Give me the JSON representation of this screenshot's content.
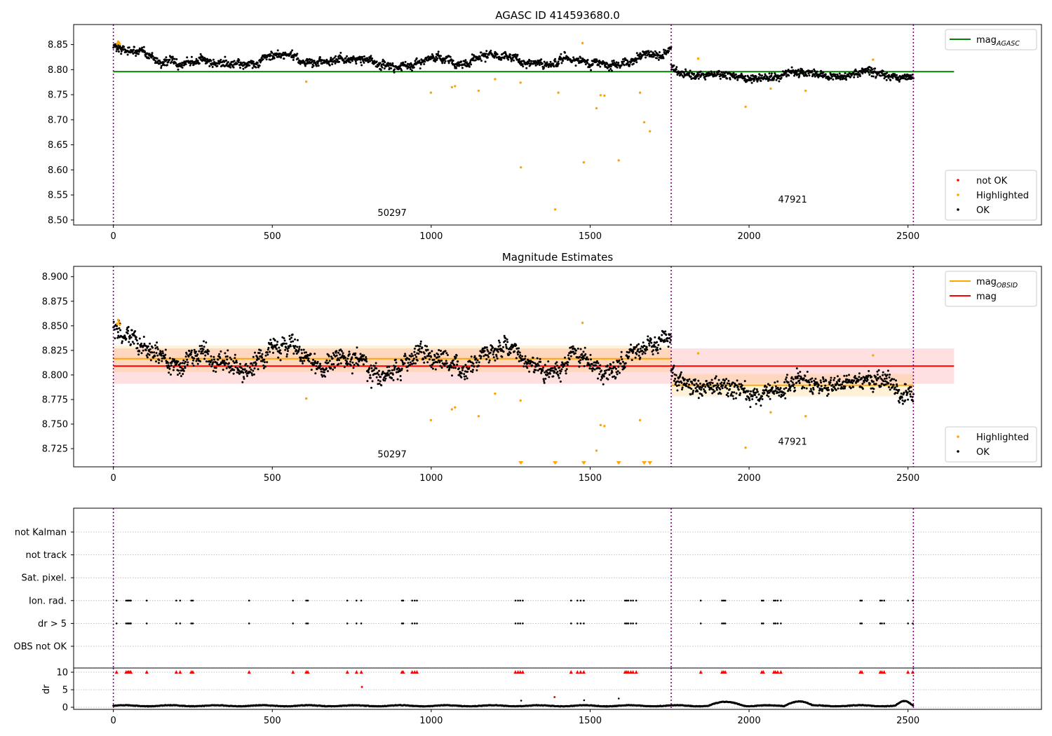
{
  "chart_data": [
    {
      "type": "scatter",
      "title": "AGASC ID 414593680.0",
      "xlim": [
        -125,
        2920
      ],
      "ylim": [
        8.49,
        8.89
      ],
      "xticks": [
        0,
        500,
        1000,
        1500,
        2000,
        2500
      ],
      "yticks": [
        "8.50",
        "8.55",
        "8.60",
        "8.65",
        "8.70",
        "8.75",
        "8.80",
        "8.85"
      ],
      "grid": false,
      "obs_boundaries": [
        0,
        1755,
        2517
      ],
      "obsid_labels": [
        {
          "text": "50297",
          "x": 877,
          "y": 8.508
        },
        {
          "text": "47921",
          "x": 2137,
          "y": 8.535
        }
      ],
      "lines": [
        {
          "name": "mag_AGASC",
          "color": "#008000",
          "x": [
            0,
            2645
          ],
          "y": [
            8.796,
            8.796
          ]
        }
      ],
      "legends": [
        {
          "position": "top-right",
          "entries": [
            {
              "label": "mag",
              "sub": "AGASC",
              "kind": "line",
              "color": "#008000"
            }
          ]
        },
        {
          "position": "lower-right",
          "entries": [
            {
              "label": "not OK",
              "kind": "dot",
              "color": "#ff0000"
            },
            {
              "label": "Highlighted",
              "kind": "dot",
              "color": "#ffa500"
            },
            {
              "label": "OK",
              "kind": "dot",
              "color": "#000000"
            }
          ]
        }
      ],
      "series": [
        {
          "name": "OK",
          "color": "#000000",
          "kind": "dense",
          "segments": [
            {
              "x": [
                0,
                1755
              ],
              "level": 8.817,
              "amp": 0.011,
              "noise": 0.006,
              "start": 8.843,
              "end": 8.839
            },
            {
              "x": [
                1755,
                2517
              ],
              "level": 8.789,
              "amp": 0.007,
              "noise": 0.006,
              "start": 8.802,
              "end": 8.79
            }
          ]
        },
        {
          "name": "Highlighted",
          "color": "#ffa500",
          "kind": "points",
          "x": [
            12,
            15,
            18,
            20,
            607,
            999,
            1065,
            1075,
            1149,
            1201,
            1281,
            1282,
            1390,
            1400,
            1476,
            1480,
            1520,
            1533,
            1545,
            1590,
            1657,
            1670,
            1688,
            1840,
            1989,
            2068,
            2178,
            2390
          ],
          "y": [
            8.852,
            8.856,
            8.854,
            8.851,
            8.776,
            8.754,
            8.765,
            8.767,
            8.758,
            8.781,
            8.774,
            8.605,
            8.521,
            8.754,
            8.853,
            8.615,
            8.723,
            8.749,
            8.748,
            8.619,
            8.754,
            8.695,
            8.677,
            8.822,
            8.726,
            8.762,
            8.758,
            8.82
          ]
        }
      ]
    },
    {
      "type": "scatter",
      "title": "Magnitude Estimates",
      "xlim": [
        -125,
        2920
      ],
      "ylim": [
        8.7065,
        8.9105
      ],
      "xticks": [
        0,
        500,
        1000,
        1500,
        2000,
        2500
      ],
      "yticks": [
        "8.725",
        "8.750",
        "8.775",
        "8.800",
        "8.825",
        "8.850",
        "8.875",
        "8.900"
      ],
      "grid": false,
      "obs_boundaries": [
        0,
        1755,
        2517
      ],
      "obsid_labels": [
        {
          "text": "50297",
          "x": 877,
          "y": 8.716
        },
        {
          "text": "47921",
          "x": 2137,
          "y": 8.729
        }
      ],
      "bands": [
        {
          "color": "#ff0000",
          "opacity": 0.12,
          "x": [
            0,
            2645
          ],
          "y": [
            8.791,
            8.827
          ]
        },
        {
          "color": "#ffa500",
          "opacity": 0.15,
          "x": [
            0,
            1755
          ],
          "y": [
            8.803,
            8.83
          ]
        },
        {
          "color": "#ffa500",
          "opacity": 0.15,
          "x": [
            1755,
            2517
          ],
          "y": [
            8.778,
            8.801
          ]
        }
      ],
      "lines": [
        {
          "name": "mag_OBSID",
          "color": "#ffa500",
          "x": [
            0,
            1755
          ],
          "y": [
            8.8165,
            8.8165
          ]
        },
        {
          "name": "mag_OBSID",
          "color": "#ffa500",
          "x": [
            1755,
            2517
          ],
          "y": [
            8.7895,
            8.7895
          ]
        },
        {
          "name": "mag",
          "color": "#ff0000",
          "x": [
            0,
            2645
          ],
          "y": [
            8.809,
            8.809
          ]
        }
      ],
      "legends": [
        {
          "position": "top-right",
          "entries": [
            {
              "label": "mag",
              "sub": "OBSID",
              "kind": "line",
              "color": "#ffa500"
            },
            {
              "label": "mag",
              "kind": "line",
              "color": "#ff0000"
            }
          ]
        },
        {
          "position": "lower-right",
          "entries": [
            {
              "label": "Highlighted",
              "kind": "dot",
              "color": "#ffa500"
            },
            {
              "label": "OK",
              "kind": "dot",
              "color": "#000000"
            }
          ]
        }
      ],
      "series": [
        {
          "name": "OK",
          "color": "#000000",
          "kind": "dense",
          "segments": [
            {
              "x": [
                0,
                1755
              ],
              "level": 8.816,
              "amp": 0.014,
              "noise": 0.007,
              "start": 8.843,
              "end": 8.839
            },
            {
              "x": [
                1755,
                2517
              ],
              "level": 8.789,
              "amp": 0.009,
              "noise": 0.007,
              "start": 8.805,
              "end": 8.79
            }
          ]
        },
        {
          "name": "Highlighted",
          "color": "#ffa500",
          "kind": "points",
          "x": [
            12,
            15,
            18,
            20,
            607,
            999,
            1065,
            1075,
            1149,
            1201,
            1281,
            1476,
            1520,
            1533,
            1545,
            1657,
            1840,
            1989,
            2068,
            2178,
            2390
          ],
          "y": [
            8.852,
            8.856,
            8.854,
            8.851,
            8.776,
            8.754,
            8.765,
            8.767,
            8.758,
            8.781,
            8.774,
            8.853,
            8.723,
            8.749,
            8.748,
            8.754,
            8.822,
            8.726,
            8.762,
            8.758,
            8.82
          ]
        },
        {
          "name": "Highlighted (below range)",
          "color": "#ffa500",
          "kind": "markers-bottom",
          "x": [
            1282,
            1390,
            1480,
            1590,
            1670,
            1688
          ]
        }
      ]
    },
    {
      "type": "scatter",
      "title": "",
      "xlim": [
        -125,
        2920
      ],
      "grid": true,
      "obs_boundaries": [
        0,
        1755,
        2517
      ],
      "categories": [
        "not Kalman",
        "not track",
        "Sat. pixel.",
        "Ion. rad.",
        "dr > 5",
        "OBS not OK"
      ],
      "flag_x": [
        10,
        40,
        45,
        48,
        52,
        55,
        105,
        198,
        210,
        245,
        250,
        427,
        565,
        607,
        612,
        736,
        765,
        780,
        908,
        912,
        940,
        948,
        955,
        1265,
        1273,
        1280,
        1288,
        1440,
        1460,
        1470,
        1480,
        1610,
        1615,
        1620,
        1628,
        1635,
        1645,
        1848,
        1915,
        1920,
        1925,
        2040,
        2045,
        2078,
        2083,
        2090,
        2100,
        2350,
        2355,
        2413,
        2418,
        2425,
        2500,
        2515
      ],
      "flags": {
        "Ion. rad.": "all",
        "dr > 5": "all"
      },
      "dr": {
        "ylabel": "dr",
        "ylim": [
          -0.6,
          11.2
        ],
        "yticks": [
          0,
          5,
          10
        ],
        "clip_value": 10,
        "baseline": 0.35,
        "baseline_amp": 0.3,
        "bumps": [
          {
            "x": [
              1870,
              1990
            ],
            "y": 1.0
          },
          {
            "x": [
              2110,
              2200
            ],
            "y": 1.3
          },
          {
            "x": [
              2460,
              2515
            ],
            "y": 1.2
          }
        ],
        "outliers_red": [
          {
            "x": 782,
            "y": 5.8
          },
          {
            "x": 1388,
            "y": 2.9
          }
        ],
        "outliers_black": [
          {
            "x": 1283,
            "y": 1.9
          },
          {
            "x": 1481,
            "y": 2.0
          },
          {
            "x": 1590,
            "y": 2.5
          }
        ],
        "xticks": [
          0,
          500,
          1000,
          1500,
          2000,
          2500
        ]
      }
    }
  ]
}
